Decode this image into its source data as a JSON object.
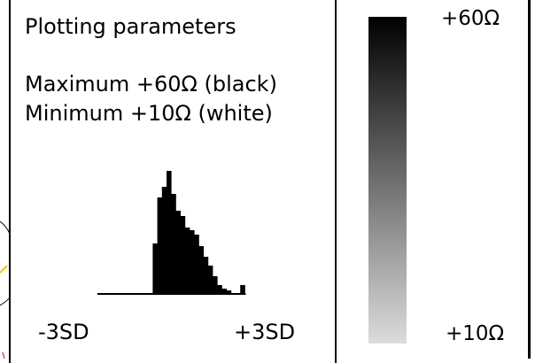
{
  "panel": {
    "title": "Plotting parameters",
    "maximum_line": "Maximum +60Ω (black)",
    "minimum_line": "Minimum +10Ω (white)",
    "axis_left_label": "-3SD",
    "axis_right_label": "+3SD",
    "histogram_heights": [
      0,
      0,
      0,
      0,
      0,
      0,
      0,
      0,
      0,
      0,
      0,
      0,
      57,
      109,
      121,
      139,
      113,
      94,
      88,
      75,
      72,
      67,
      54,
      42,
      32,
      20,
      10,
      6,
      4,
      0,
      0,
      10
    ]
  },
  "colorbar": {
    "max_label": "+60Ω",
    "min_label": "+10Ω",
    "top_color": "#000000",
    "bottom_color": "#dcdcdc"
  }
}
